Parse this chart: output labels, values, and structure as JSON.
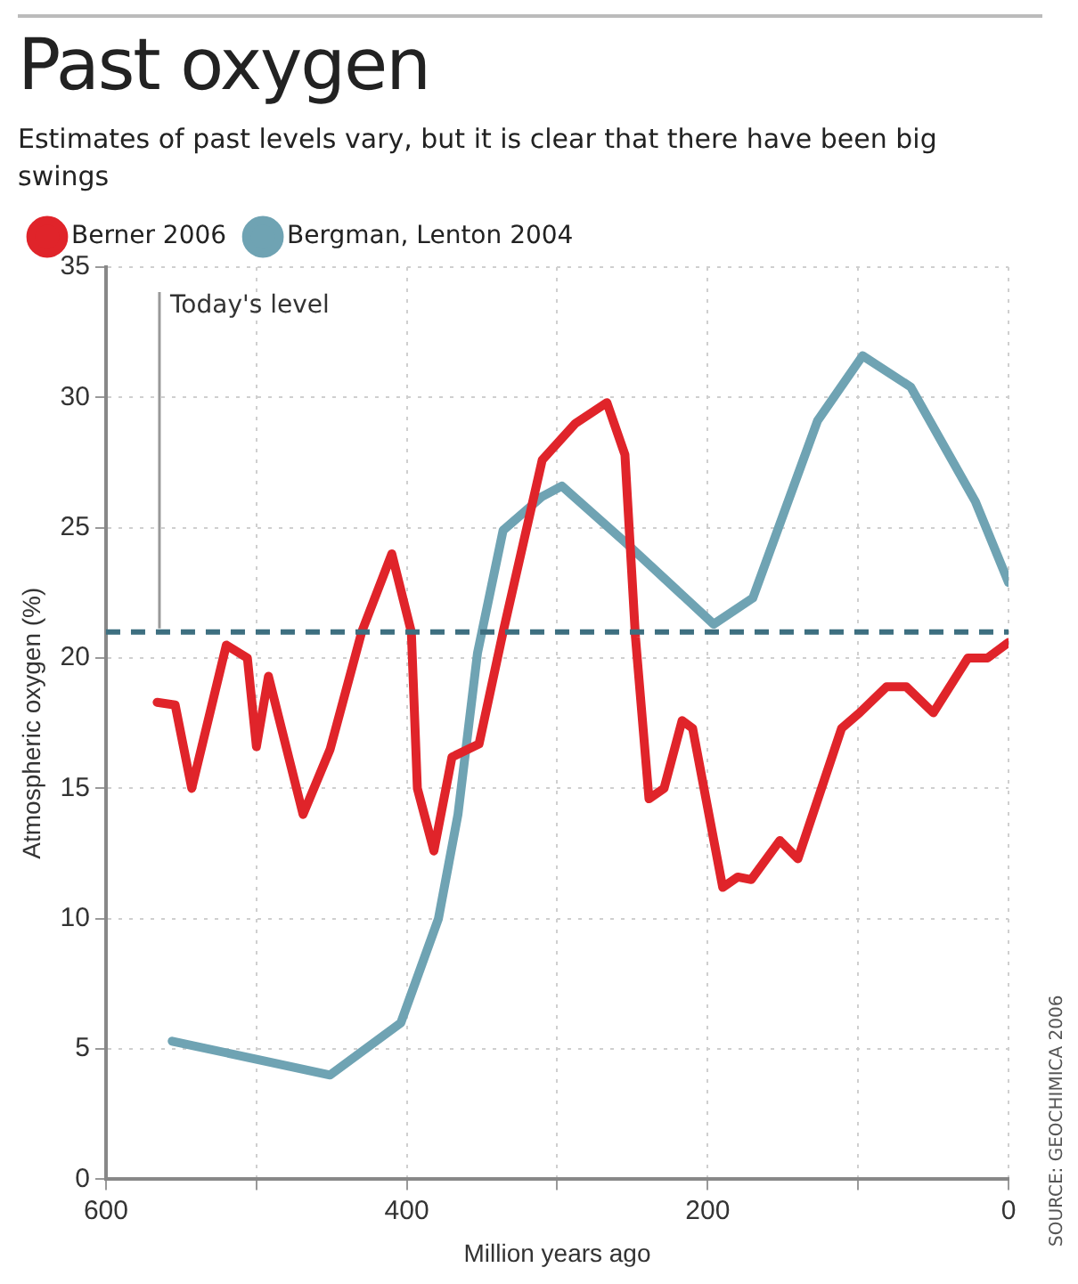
{
  "chart_data": {
    "type": "line",
    "title": "Past oxygen",
    "subtitle": "Estimates of past levels vary, but it is clear that there have been big swings",
    "xlabel": "Million years ago",
    "ylabel": "Atmospheric oxygen (%)",
    "xlim": [
      600,
      0
    ],
    "xticks": [
      600,
      {
        "value": 500,
        "label": null
      },
      400,
      {
        "value": 300,
        "label": null
      },
      200,
      {
        "value": 100,
        "label": null
      },
      0
    ],
    "ylim": [
      0,
      35
    ],
    "yticks": [
      0,
      5,
      10,
      15,
      20,
      25,
      30,
      35
    ],
    "grid": true,
    "legend": "top left",
    "line_style": "solid",
    "marker": "none",
    "series": [
      {
        "name": "Berner 2006",
        "color": "#e0242a",
        "x": [
          566,
          554,
          543,
          520,
          506,
          500,
          492,
          469,
          451,
          430,
          410,
          397,
          393,
          382,
          370,
          352,
          336,
          310,
          288,
          267,
          255,
          248,
          239,
          229,
          217,
          210,
          190,
          180,
          171,
          152,
          140,
          111,
          99,
          81,
          68,
          50,
          27,
          14,
          0
        ],
        "values": [
          18.3,
          18.2,
          15,
          20.5,
          20,
          16.6,
          19.3,
          14,
          16.5,
          21,
          24,
          21,
          15,
          12.6,
          16.2,
          16.7,
          21,
          27.6,
          29,
          29.8,
          27.8,
          20.8,
          14.6,
          15,
          17.6,
          17.3,
          11.2,
          11.6,
          11.5,
          13,
          12.3,
          17.3,
          17.9,
          18.9,
          18.9,
          17.9,
          20,
          20,
          20.6
        ]
      },
      {
        "name": "Bergman, Lenton 2004",
        "color": "#6fa3b3",
        "x": [
          556,
          451,
          404,
          379,
          366,
          353,
          336,
          310,
          297,
          254,
          196,
          170,
          127,
          97,
          65,
          22,
          0
        ],
        "values": [
          5.3,
          4,
          6,
          10,
          14,
          20.2,
          24.9,
          26.2,
          26.6,
          24.4,
          21.3,
          22.3,
          29.1,
          31.6,
          30.4,
          26,
          22.9
        ]
      }
    ],
    "ref_lines": [
      {
        "axis": "y",
        "value": 21,
        "label": "Today's level",
        "color": "#3d6f80",
        "line_style": "dashed"
      }
    ],
    "annotations": [
      "SOURCE: GEOCHIMICA 2006"
    ]
  }
}
